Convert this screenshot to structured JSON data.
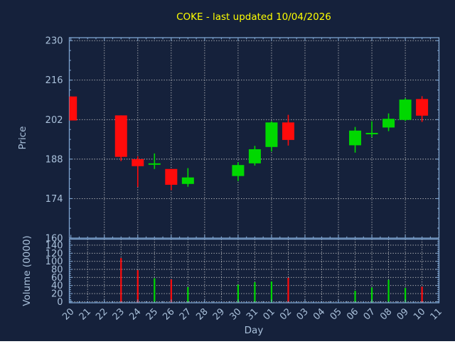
{
  "colors": {
    "background": "#15213B",
    "axis": "#7EA4D0",
    "tick_text": "#A9C0DA",
    "grid": "#C9C9C9",
    "title": "#FFFF00",
    "up": "#00D800",
    "down": "#FF0B0B"
  },
  "chart_data": {
    "type": "candlestick",
    "title": "COKE - last updated 10/04/2026",
    "xlabel": "Day",
    "ylabel_price": "Price",
    "ylabel_volume": "Volume (0000)",
    "grid": "dotted",
    "legend": "none",
    "x_tick_labels": [
      "20",
      "21",
      "22",
      "23",
      "24",
      "25",
      "26",
      "27",
      "28",
      "29",
      "30",
      "31",
      "01",
      "02",
      "03",
      "04",
      "05",
      "06",
      "07",
      "08",
      "09",
      "10",
      "11"
    ],
    "price_tick_labels": [
      230,
      216,
      202,
      188,
      174,
      160
    ],
    "volume_tick_labels": [
      140,
      120,
      100,
      80,
      60,
      40,
      20,
      0
    ],
    "price_range": [
      160,
      231
    ],
    "volume_range": [
      0,
      155
    ],
    "candles": [
      {
        "day": "20",
        "open": 210.2,
        "high": 210.2,
        "low": 201.7,
        "close": 201.7,
        "volume": null
      },
      {
        "day": "23",
        "open": 203.5,
        "high": 203.5,
        "low": 187.3,
        "close": 188.8,
        "volume": 108
      },
      {
        "day": "24",
        "open": 188.0,
        "high": 189.0,
        "low": 178.1,
        "close": 185.5,
        "volume": 78
      },
      {
        "day": "25",
        "open": 186.0,
        "high": 190.0,
        "low": 184.5,
        "close": 186.5,
        "volume": 58
      },
      {
        "day": "26",
        "open": 184.5,
        "high": 184.5,
        "low": 177.0,
        "close": 178.9,
        "volume": 55
      },
      {
        "day": "27",
        "open": 179.2,
        "high": 184.8,
        "low": 178.2,
        "close": 181.5,
        "volume": 36
      },
      {
        "day": "30",
        "open": 182.0,
        "high": 186.9,
        "low": 180.2,
        "close": 185.9,
        "volume": 42
      },
      {
        "day": "31",
        "open": 186.5,
        "high": 192.7,
        "low": 185.7,
        "close": 191.5,
        "volume": 48
      },
      {
        "day": "01",
        "open": 192.3,
        "high": 201.4,
        "low": 190.7,
        "close": 201.0,
        "volume": 50
      },
      {
        "day": "02",
        "open": 201.0,
        "high": 203.7,
        "low": 192.8,
        "close": 194.8,
        "volume": 59
      },
      {
        "day": "06",
        "open": 192.9,
        "high": 199.4,
        "low": 190.3,
        "close": 198.1,
        "volume": 27
      },
      {
        "day": "07",
        "open": 196.8,
        "high": 201.4,
        "low": 195.8,
        "close": 197.3,
        "volume": 35
      },
      {
        "day": "08",
        "open": 199.2,
        "high": 204.2,
        "low": 197.9,
        "close": 202.3,
        "volume": 54
      },
      {
        "day": "09",
        "open": 201.9,
        "high": 209.6,
        "low": 201.5,
        "close": 209.1,
        "volume": 34
      },
      {
        "day": "10",
        "open": 209.3,
        "high": 210.3,
        "low": 201.2,
        "close": 203.4,
        "volume": 37
      }
    ]
  }
}
